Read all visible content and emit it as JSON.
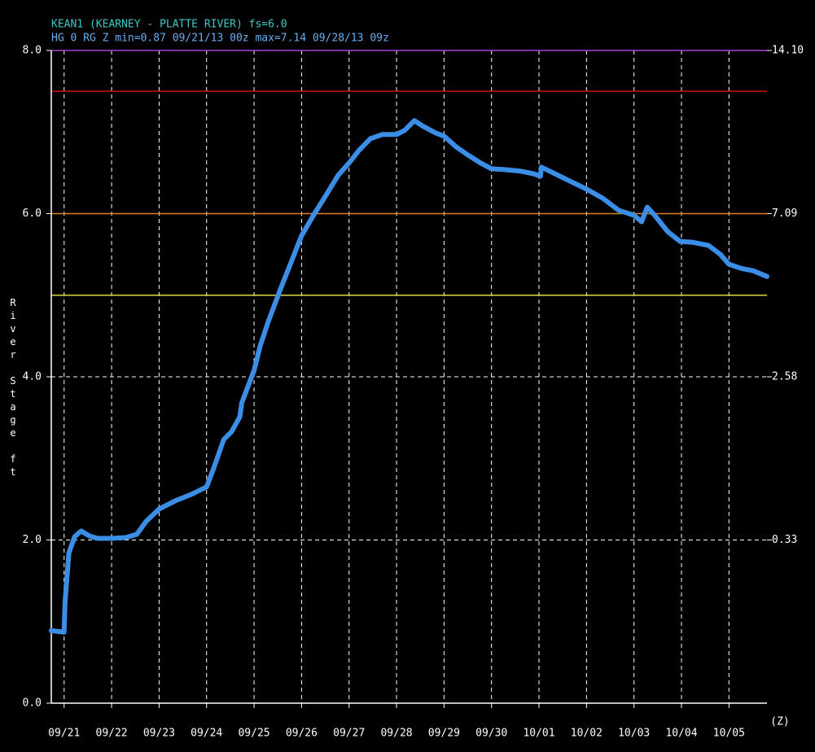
{
  "chart_data": {
    "type": "line",
    "title": "KEAN1 (KEARNEY - PLATTE RIVER) fs=6.0",
    "subtitle": "HG 0 RG Z min=0.87 09/21/13 00z max=7.14 09/28/13 09z",
    "y_label": "River Stage ft",
    "x_label": "(Z)",
    "color": "#3a8ee6",
    "grid": true,
    "xlim": [
      -0.27,
      14.8
    ],
    "xticks": [
      {
        "value": 0,
        "label": "09/21"
      },
      {
        "value": 1,
        "label": "09/22"
      },
      {
        "value": 2,
        "label": "09/23"
      },
      {
        "value": 3,
        "label": "09/24"
      },
      {
        "value": 4,
        "label": "09/25"
      },
      {
        "value": 5,
        "label": "09/26"
      },
      {
        "value": 6,
        "label": "09/27"
      },
      {
        "value": 7,
        "label": "09/28"
      },
      {
        "value": 8,
        "label": "09/29"
      },
      {
        "value": 9,
        "label": "09/30"
      },
      {
        "value": 10,
        "label": "10/01"
      },
      {
        "value": 11,
        "label": "10/02"
      },
      {
        "value": 12,
        "label": "10/03"
      },
      {
        "value": 13,
        "label": "10/04"
      },
      {
        "value": 14,
        "label": "10/05"
      }
    ],
    "ylim": [
      0,
      8
    ],
    "yticks": [
      {
        "value": 0,
        "label": "0.0"
      },
      {
        "value": 2,
        "label": "2.0"
      },
      {
        "value": 4,
        "label": "4.0"
      },
      {
        "value": 6,
        "label": "6.0"
      },
      {
        "value": 8,
        "label": "8.0"
      }
    ],
    "y2ticks": [
      {
        "value": 0.33,
        "label": "0.33"
      },
      {
        "value": 2.58,
        "label": "2.58"
      },
      {
        "value": 7.09,
        "label": "7.09"
      },
      {
        "value": 14.1,
        "label": "14.10"
      }
    ],
    "y2tick_stage": [
      2,
      4,
      6,
      8
    ],
    "thresholds": [
      {
        "value": 8,
        "color": "#b040d0"
      },
      {
        "value": 7.5,
        "color": "#d01010"
      },
      {
        "value": 6,
        "color": "#e08020"
      },
      {
        "value": 5,
        "color": "#d8d840"
      }
    ],
    "x": [
      -0.27,
      0,
      0.02,
      0.1,
      0.22,
      0.36,
      0.53,
      0.7,
      1.0,
      1.3,
      1.53,
      1.73,
      2.0,
      2.34,
      2.68,
      3.0,
      3.15,
      3.36,
      3.53,
      3.7,
      3.74,
      4.0,
      4.13,
      4.3,
      4.56,
      4.73,
      5.0,
      5.25,
      5.51,
      5.77,
      6.0,
      6.2,
      6.45,
      6.7,
      7.0,
      7.17,
      7.375,
      7.56,
      7.82,
      8.0,
      8.25,
      8.5,
      8.77,
      9.0,
      9.28,
      9.62,
      9.88,
      10.03,
      10.05,
      10.3,
      10.65,
      11.0,
      11.34,
      11.68,
      12.0,
      12.16,
      12.28,
      12.45,
      12.71,
      12.97,
      13.22,
      13.57,
      13.82,
      14.0,
      14.25,
      14.51,
      14.8
    ],
    "values": [
      0.89,
      0.87,
      1.24,
      1.84,
      2.04,
      2.11,
      2.05,
      2.02,
      2.02,
      2.03,
      2.07,
      2.23,
      2.38,
      2.48,
      2.56,
      2.65,
      2.88,
      3.23,
      3.33,
      3.51,
      3.68,
      4.08,
      4.38,
      4.68,
      5.08,
      5.33,
      5.73,
      5.98,
      6.22,
      6.47,
      6.62,
      6.77,
      6.92,
      6.97,
      6.97,
      7.02,
      7.14,
      7.07,
      6.99,
      6.95,
      6.82,
      6.72,
      6.62,
      6.55,
      6.54,
      6.52,
      6.49,
      6.46,
      6.57,
      6.5,
      6.4,
      6.3,
      6.19,
      6.04,
      5.98,
      5.9,
      6.08,
      5.97,
      5.78,
      5.66,
      5.65,
      5.61,
      5.5,
      5.38,
      5.33,
      5.3,
      5.23
    ]
  }
}
